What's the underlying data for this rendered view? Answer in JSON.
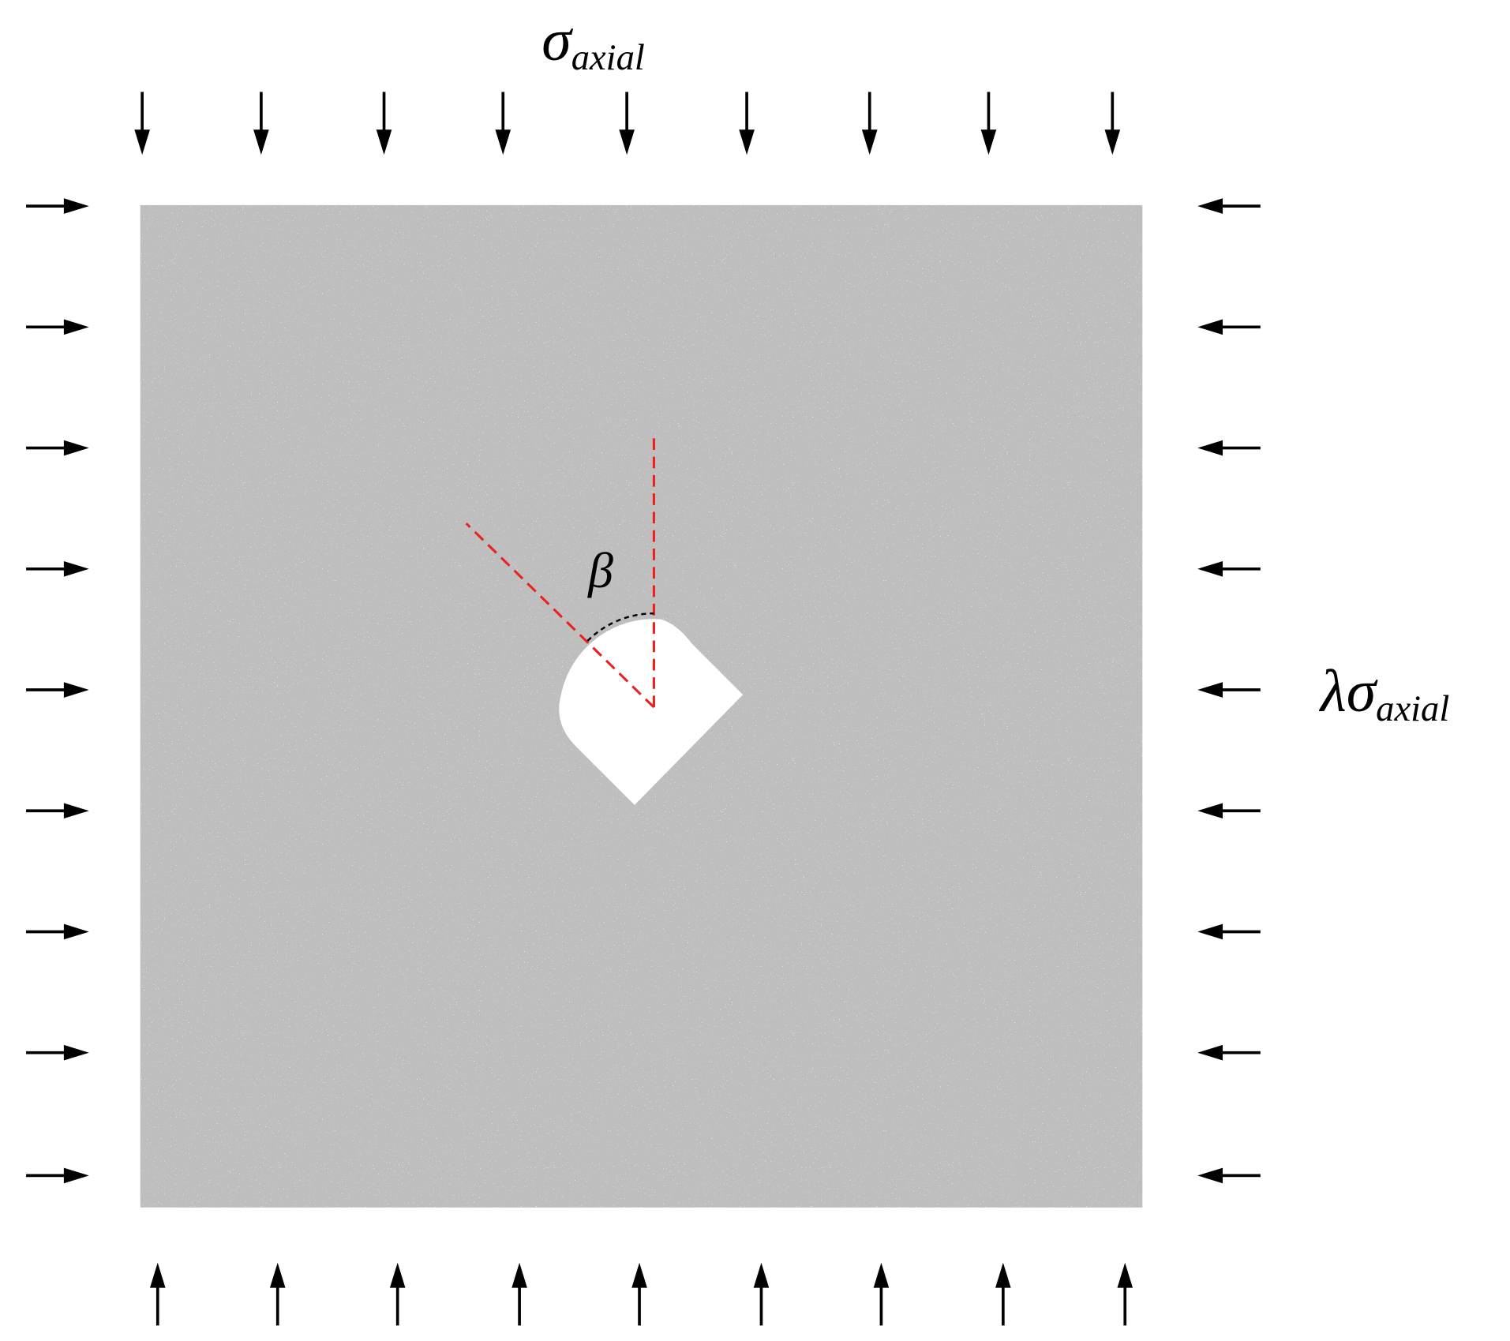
{
  "axial_load": {
    "symbol": "σ",
    "subscript": "axial"
  },
  "lateral_load": {
    "symbol": "λσ",
    "subscript": "axial"
  },
  "angle": {
    "symbol": "β"
  }
}
